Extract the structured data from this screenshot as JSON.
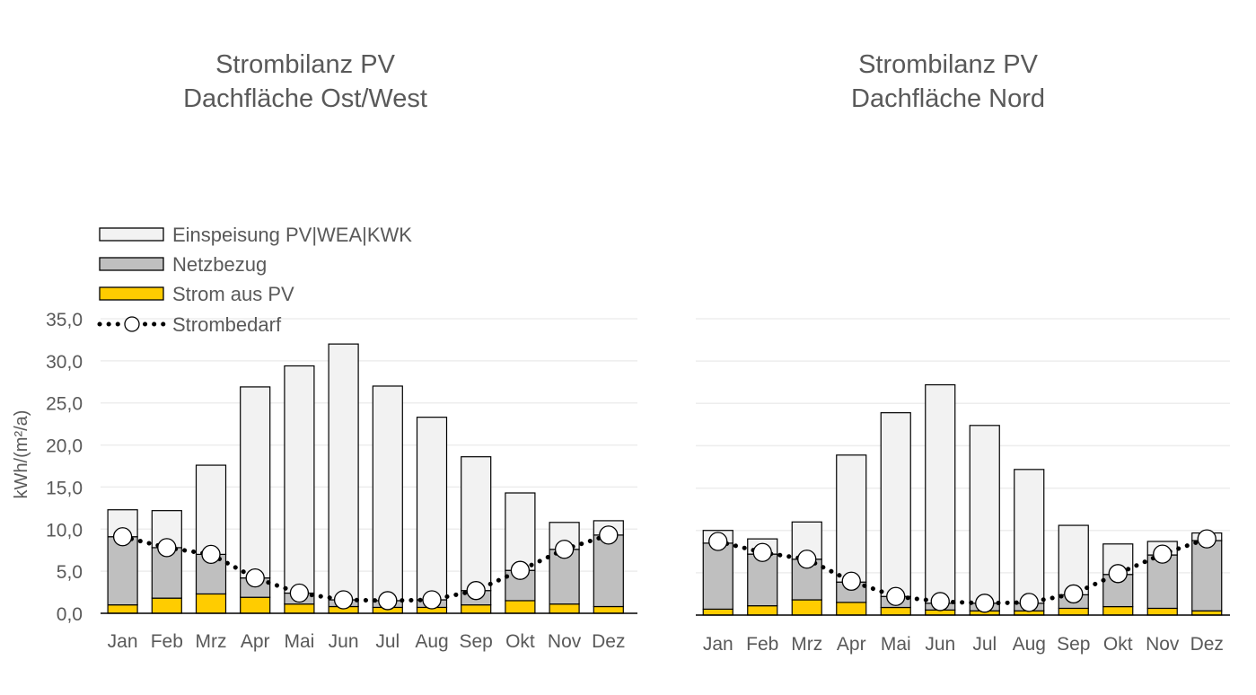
{
  "chart_data": [
    {
      "type": "bar",
      "title": "Strombilanz PV",
      "subtitle": "Dachfläche Ost/West",
      "xlabel": "",
      "ylabel": "kWh/(m²/a)",
      "ylim": [
        0,
        35
      ],
      "yticks": [
        "0,0",
        "5,0",
        "10,0",
        "15,0",
        "20,0",
        "25,0",
        "30,0",
        "35,0"
      ],
      "grid": true,
      "legend_position": "top-left",
      "categories": [
        "Jan",
        "Feb",
        "Mrz",
        "Apr",
        "Mai",
        "Jun",
        "Jul",
        "Aug",
        "Sep",
        "Okt",
        "Nov",
        "Dez"
      ],
      "series": [
        {
          "name": "Strom aus PV",
          "kind": "stacked-bar",
          "color": "#FFCC00",
          "values": [
            1.0,
            1.8,
            2.3,
            1.9,
            1.1,
            0.8,
            0.7,
            0.7,
            1.0,
            1.5,
            1.1,
            0.8
          ]
        },
        {
          "name": "Netzbezug",
          "kind": "stacked-bar",
          "color": "#BFBFBF",
          "values": [
            8.1,
            6.0,
            4.7,
            2.3,
            1.3,
            0.8,
            0.8,
            0.9,
            1.7,
            3.6,
            6.5,
            8.5
          ]
        },
        {
          "name": "Einspeisung PV|WEA|KWK",
          "kind": "stacked-bar",
          "color": "#F2F2F2",
          "values": [
            3.2,
            4.4,
            10.6,
            22.7,
            27.0,
            30.4,
            25.5,
            21.7,
            15.9,
            9.2,
            3.2,
            1.7
          ]
        },
        {
          "name": "Strombedarf",
          "kind": "dotted-line-markers",
          "color": "#000000",
          "values": [
            9.1,
            7.8,
            7.0,
            4.2,
            2.4,
            1.6,
            1.5,
            1.6,
            2.7,
            5.1,
            7.6,
            9.3
          ]
        }
      ]
    },
    {
      "type": "bar",
      "title": "Strombilanz PV",
      "subtitle": "Dachfläche Nord",
      "xlabel": "",
      "ylabel": "",
      "ylim": [
        0,
        35
      ],
      "grid": true,
      "categories": [
        "Jan",
        "Feb",
        "Mrz",
        "Apr",
        "Mai",
        "Jun",
        "Jul",
        "Aug",
        "Sep",
        "Okt",
        "Nov",
        "Dez"
      ],
      "series": [
        {
          "name": "Strom aus PV",
          "kind": "stacked-bar",
          "color": "#FFCC00",
          "values": [
            0.7,
            1.1,
            1.8,
            1.5,
            0.9,
            0.6,
            0.5,
            0.5,
            0.8,
            1.0,
            0.8,
            0.5
          ]
        },
        {
          "name": "Netzbezug",
          "kind": "stacked-bar",
          "color": "#BFBFBF",
          "values": [
            7.8,
            6.1,
            4.8,
            2.4,
            1.3,
            0.8,
            0.9,
            0.9,
            1.6,
            3.8,
            6.3,
            8.3
          ]
        },
        {
          "name": "Einspeisung PV|WEA|KWK",
          "kind": "stacked-bar",
          "color": "#F2F2F2",
          "values": [
            1.5,
            1.8,
            4.4,
            15.0,
            21.7,
            25.8,
            21.0,
            15.8,
            8.2,
            3.6,
            1.6,
            0.9
          ]
        },
        {
          "name": "Strombedarf",
          "kind": "dotted-line-markers",
          "color": "#000000",
          "values": [
            8.7,
            7.4,
            6.6,
            4.0,
            2.2,
            1.6,
            1.4,
            1.5,
            2.5,
            4.9,
            7.2,
            9.0
          ]
        }
      ]
    }
  ],
  "legend": {
    "items": [
      {
        "label": "Einspeisung PV|WEA|KWK",
        "swatch": "bar",
        "color": "#F2F2F2"
      },
      {
        "label": "Netzbezug",
        "swatch": "bar",
        "color": "#BFBFBF"
      },
      {
        "label": "Strom aus PV",
        "swatch": "bar",
        "color": "#FFCC00"
      },
      {
        "label": "Strombedarf",
        "swatch": "dotted-line-markers",
        "color": "#000000"
      }
    ]
  },
  "colors": {
    "text": "#595959",
    "gridline": "#EDEDED",
    "axis": "#000000",
    "bar_outline": "#000000"
  }
}
